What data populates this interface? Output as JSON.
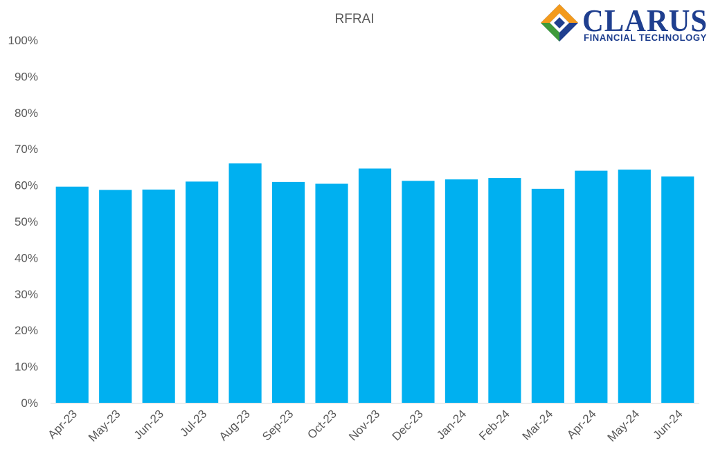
{
  "logo": {
    "word": "CLARUS",
    "sub": "FINANCIAL TECHNOLOGY",
    "colors": {
      "navy": "#1f3f8f",
      "orange": "#f39a1c",
      "green": "#3f9a3a"
    }
  },
  "chart_data": {
    "type": "bar",
    "title": "RFRAI",
    "xlabel": "",
    "ylabel": "",
    "categories": [
      "Apr-23",
      "May-23",
      "Jun-23",
      "Jul-23",
      "Aug-23",
      "Sep-23",
      "Oct-23",
      "Nov-23",
      "Dec-23",
      "Jan-24",
      "Feb-24",
      "Mar-24",
      "Apr-24",
      "May-24",
      "Jun-24"
    ],
    "values": [
      59.6,
      58.7,
      58.8,
      61.0,
      66.0,
      60.9,
      60.4,
      64.6,
      61.2,
      61.6,
      62.0,
      59.0,
      64.0,
      64.3,
      62.4
    ],
    "ylim": [
      0,
      100
    ],
    "yticks": [
      "0%",
      "10%",
      "20%",
      "30%",
      "40%",
      "50%",
      "60%",
      "70%",
      "80%",
      "90%",
      "100%"
    ],
    "grid": false,
    "legend": "none",
    "bar_color": "#00b0f0"
  }
}
